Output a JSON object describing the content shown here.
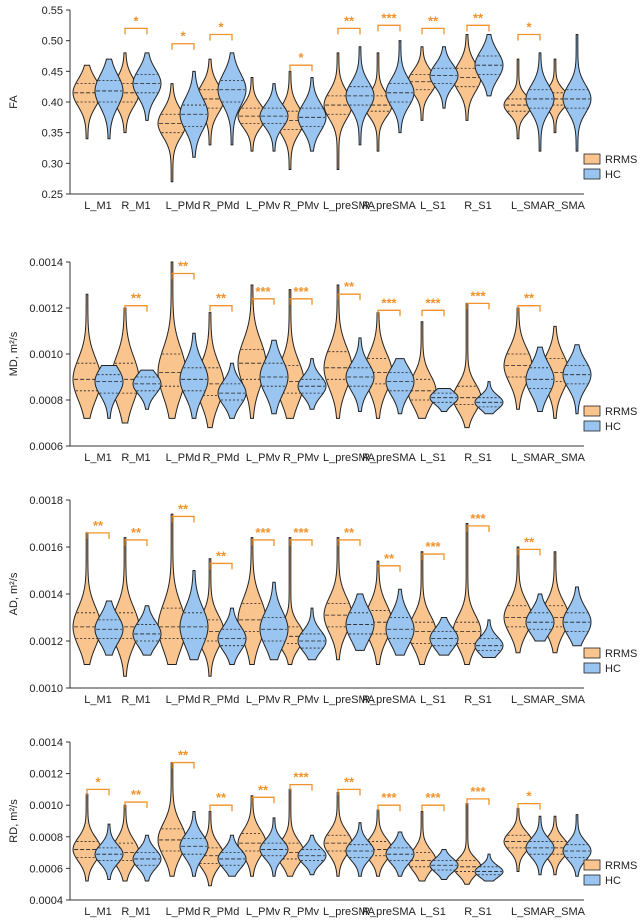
{
  "chart_data": [
    {
      "type": "violin",
      "ylabel": "FA",
      "ylim": [
        0.25,
        0.55
      ],
      "yticks": [
        "0.25",
        "0.30",
        "0.35",
        "0.40",
        "0.45",
        "0.50",
        "0.55"
      ],
      "categories": [
        "L_M1",
        "R_M1",
        "L_PMd",
        "R_PMd",
        "L_PMv",
        "R_PMv",
        "L_preSMA",
        "R_preSMA",
        "L_S1",
        "R_S1",
        "L_SMA",
        "R_SMA"
      ],
      "series": [
        {
          "name": "RRMS",
          "color": "#F9C48D",
          "min": [
            0.34,
            0.35,
            0.27,
            0.33,
            0.32,
            0.29,
            0.29,
            0.32,
            0.37,
            0.37,
            0.34,
            0.35
          ],
          "max": [
            0.46,
            0.48,
            0.43,
            0.47,
            0.44,
            0.45,
            0.48,
            0.48,
            0.49,
            0.51,
            0.47,
            0.47
          ],
          "median": [
            0.415,
            0.415,
            0.365,
            0.405,
            0.377,
            0.37,
            0.395,
            0.395,
            0.433,
            0.44,
            0.395,
            0.405
          ],
          "q1": [
            0.4,
            0.4,
            0.35,
            0.39,
            0.365,
            0.355,
            0.38,
            0.385,
            0.42,
            0.425,
            0.385,
            0.395
          ],
          "q3": [
            0.43,
            0.43,
            0.38,
            0.42,
            0.39,
            0.385,
            0.41,
            0.41,
            0.445,
            0.455,
            0.405,
            0.415
          ]
        },
        {
          "name": "HC",
          "color": "#99C5F0",
          "min": [
            0.34,
            0.37,
            0.31,
            0.33,
            0.32,
            0.32,
            0.33,
            0.35,
            0.39,
            0.41,
            0.32,
            0.32
          ],
          "max": [
            0.47,
            0.48,
            0.45,
            0.48,
            0.43,
            0.44,
            0.49,
            0.5,
            0.49,
            0.51,
            0.48,
            0.51
          ],
          "median": [
            0.418,
            0.43,
            0.38,
            0.42,
            0.377,
            0.375,
            0.41,
            0.415,
            0.443,
            0.46,
            0.405,
            0.405
          ],
          "q1": [
            0.4,
            0.415,
            0.36,
            0.4,
            0.365,
            0.36,
            0.395,
            0.4,
            0.43,
            0.445,
            0.39,
            0.39
          ],
          "q3": [
            0.435,
            0.445,
            0.395,
            0.435,
            0.39,
            0.39,
            0.425,
            0.43,
            0.455,
            0.475,
            0.42,
            0.42
          ]
        }
      ],
      "significance": [
        "",
        "*",
        "*",
        "*",
        "",
        "*",
        "**",
        "***",
        "**",
        "**",
        "*",
        ""
      ],
      "sig_y": [
        null,
        0.52,
        0.495,
        0.51,
        null,
        0.46,
        0.52,
        0.525,
        0.52,
        0.525,
        0.51,
        null
      ]
    },
    {
      "type": "violin",
      "ylabel": "MD, m²/s",
      "ylim": [
        0.0006,
        0.0014
      ],
      "yticks": [
        "0.0006",
        "0.0008",
        "0.0010",
        "0.0012",
        "0.0014"
      ],
      "categories": [
        "L_M1",
        "R_M1",
        "L_PMd",
        "R_PMd",
        "L_PMv",
        "R_PMv",
        "L_preSMA",
        "R_preSMA",
        "L_S1",
        "R_S1",
        "L_SMA",
        "R_SMA"
      ],
      "series": [
        {
          "name": "RRMS",
          "color": "#F9C48D",
          "min": [
            0.00072,
            0.0007,
            0.00072,
            0.00068,
            0.00072,
            0.00072,
            0.00072,
            0.00072,
            0.00072,
            0.00068,
            0.00076,
            0.00072
          ],
          "max": [
            0.00126,
            0.0012,
            0.0014,
            0.00118,
            0.0013,
            0.00128,
            0.0013,
            0.00118,
            0.00114,
            0.00122,
            0.0012,
            0.00112
          ],
          "median": [
            0.00089,
            0.00089,
            0.00092,
            0.00087,
            0.00096,
            0.00088,
            0.00094,
            0.00092,
            0.00084,
            0.00081,
            0.00095,
            0.00092
          ],
          "q1": [
            0.00084,
            0.00083,
            0.00086,
            0.00082,
            0.00089,
            0.00083,
            0.00089,
            0.00087,
            0.0008,
            0.00078,
            0.0009,
            0.00088
          ],
          "q3": [
            0.00096,
            0.00096,
            0.001,
            0.00094,
            0.00102,
            0.00095,
            0.00101,
            0.00098,
            0.00089,
            0.00086,
            0.001,
            0.00098
          ]
        },
        {
          "name": "HC",
          "color": "#99C5F0",
          "min": [
            0.00072,
            0.00076,
            0.00072,
            0.00072,
            0.00074,
            0.00076,
            0.00075,
            0.00074,
            0.00075,
            0.00074,
            0.00075,
            0.00074
          ],
          "max": [
            0.00095,
            0.00093,
            0.00109,
            0.00096,
            0.00106,
            0.00098,
            0.00107,
            0.00098,
            0.00085,
            0.00088,
            0.00103,
            0.00104
          ],
          "median": [
            0.00088,
            0.00087,
            0.00089,
            0.00083,
            0.0009,
            0.00086,
            0.0009,
            0.00088,
            0.00081,
            0.00079,
            0.00089,
            0.00091
          ],
          "q1": [
            0.00083,
            0.00084,
            0.00084,
            0.0008,
            0.00086,
            0.00083,
            0.00086,
            0.00084,
            0.00079,
            0.00077,
            0.00085,
            0.00087
          ],
          "q3": [
            0.00091,
            0.0009,
            0.00094,
            0.00087,
            0.00096,
            0.00089,
            0.00094,
            0.00092,
            0.00083,
            0.00081,
            0.00094,
            0.00095
          ]
        }
      ],
      "significance": [
        "",
        "**",
        "**",
        "**",
        "***",
        "***",
        "**",
        "***",
        "***",
        "***",
        "**",
        ""
      ],
      "sig_y": [
        null,
        0.00121,
        0.00135,
        0.00121,
        0.00124,
        0.00124,
        0.00126,
        0.00119,
        0.00119,
        0.00122,
        0.00121,
        null
      ]
    },
    {
      "type": "violin",
      "ylabel": "AD, m²/s",
      "ylim": [
        0.001,
        0.0018
      ],
      "yticks": [
        "0.0010",
        "0.0012",
        "0.0014",
        "0.0016",
        "0.0018"
      ],
      "categories": [
        "L_M1",
        "R_M1",
        "L_PMd",
        "R_PMd",
        "L_PMv",
        "R_PMv",
        "L_preSMA",
        "R_preSMA",
        "L_S1",
        "R_S1",
        "L_SMA",
        "R_SMA"
      ],
      "series": [
        {
          "name": "RRMS",
          "color": "#F9C48D",
          "min": [
            0.0011,
            0.00105,
            0.0011,
            0.00105,
            0.0011,
            0.0011,
            0.00112,
            0.0011,
            0.0011,
            0.0011,
            0.00115,
            0.00115
          ],
          "max": [
            0.00166,
            0.00164,
            0.00174,
            0.00155,
            0.00164,
            0.00164,
            0.00164,
            0.00154,
            0.00158,
            0.0017,
            0.0016,
            0.00158
          ],
          "median": [
            0.00126,
            0.00126,
            0.00126,
            0.00124,
            0.00129,
            0.00122,
            0.00131,
            0.00128,
            0.00124,
            0.00124,
            0.0013,
            0.0013
          ],
          "q1": [
            0.00121,
            0.00121,
            0.00121,
            0.0012,
            0.00124,
            0.00119,
            0.00126,
            0.00123,
            0.00119,
            0.00119,
            0.00126,
            0.00126
          ],
          "q3": [
            0.00132,
            0.00132,
            0.00134,
            0.00129,
            0.00136,
            0.00126,
            0.00136,
            0.00133,
            0.00128,
            0.00128,
            0.00135,
            0.00135
          ]
        },
        {
          "name": "HC",
          "color": "#99C5F0",
          "min": [
            0.00114,
            0.00114,
            0.00112,
            0.0011,
            0.00112,
            0.00112,
            0.00116,
            0.00114,
            0.00114,
            0.00113,
            0.0012,
            0.00118
          ],
          "max": [
            0.00137,
            0.00135,
            0.0015,
            0.00134,
            0.00145,
            0.00134,
            0.0014,
            0.00142,
            0.0013,
            0.00129,
            0.0014,
            0.00143
          ],
          "median": [
            0.00125,
            0.00123,
            0.00126,
            0.00121,
            0.00125,
            0.0012,
            0.00127,
            0.00125,
            0.00121,
            0.00118,
            0.00128,
            0.00128
          ],
          "q1": [
            0.00121,
            0.0012,
            0.00121,
            0.00118,
            0.0012,
            0.00117,
            0.00123,
            0.00121,
            0.00118,
            0.00116,
            0.00125,
            0.00124
          ],
          "q3": [
            0.00129,
            0.00127,
            0.00132,
            0.00125,
            0.0013,
            0.00123,
            0.00132,
            0.0013,
            0.00124,
            0.00121,
            0.00132,
            0.00132
          ]
        }
      ],
      "significance": [
        "**",
        "**",
        "**",
        "**",
        "***",
        "***",
        "**",
        "**",
        "***",
        "***",
        "**",
        ""
      ],
      "sig_y": [
        0.00166,
        0.00163,
        0.00173,
        0.00153,
        0.00163,
        0.00163,
        0.00163,
        0.00152,
        0.00157,
        0.00169,
        0.00159,
        null
      ]
    },
    {
      "type": "violin",
      "ylabel": "RD, m²/s",
      "ylim": [
        0.0004,
        0.0014
      ],
      "yticks": [
        "0.0004",
        "0.0006",
        "0.0008",
        "0.0010",
        "0.0012",
        "0.0014"
      ],
      "categories": [
        "L_M1",
        "R_M1",
        "L_PMd",
        "R_PMd",
        "L_PMv",
        "R_PMv",
        "L_preSMA",
        "R_preSMA",
        "L_S1",
        "R_S1",
        "L_SMA",
        "R_SMA"
      ],
      "series": [
        {
          "name": "RRMS",
          "color": "#F9C48D",
          "min": [
            0.00052,
            0.00052,
            0.00055,
            0.00049,
            0.00055,
            0.00055,
            0.00055,
            0.00055,
            0.00052,
            0.0005,
            0.00058,
            0.00056
          ],
          "max": [
            0.00107,
            0.001,
            0.00127,
            0.00096,
            0.00106,
            0.0011,
            0.00108,
            0.00097,
            0.00096,
            0.00101,
            0.00098,
            0.00093
          ],
          "median": [
            0.00072,
            0.0007,
            0.00078,
            0.00068,
            0.00076,
            0.0007,
            0.00076,
            0.00072,
            0.00065,
            0.00061,
            0.00077,
            0.00073
          ],
          "q1": [
            0.00067,
            0.00065,
            0.00071,
            0.00063,
            0.00071,
            0.00066,
            0.00071,
            0.00068,
            0.00061,
            0.00058,
            0.00073,
            0.00069
          ],
          "q3": [
            0.00077,
            0.00076,
            0.00085,
            0.00073,
            0.00082,
            0.00076,
            0.00081,
            0.00077,
            0.0007,
            0.00065,
            0.00081,
            0.00077
          ]
        },
        {
          "name": "HC",
          "color": "#99C5F0",
          "min": [
            0.00053,
            0.00052,
            0.00055,
            0.00055,
            0.00055,
            0.00056,
            0.00055,
            0.00055,
            0.00053,
            0.00052,
            0.00056,
            0.00055
          ],
          "max": [
            0.00088,
            0.00081,
            0.00096,
            0.00081,
            0.00092,
            0.00081,
            0.00089,
            0.00083,
            0.00072,
            0.00069,
            0.00093,
            0.00094
          ],
          "median": [
            0.00069,
            0.00066,
            0.00074,
            0.00066,
            0.00072,
            0.00068,
            0.00071,
            0.00069,
            0.00062,
            0.00058,
            0.00073,
            0.00071
          ],
          "q1": [
            0.00065,
            0.00062,
            0.00069,
            0.00062,
            0.00068,
            0.00065,
            0.00067,
            0.00065,
            0.00059,
            0.00056,
            0.00069,
            0.00067
          ],
          "q3": [
            0.00073,
            0.0007,
            0.00079,
            0.0007,
            0.00076,
            0.00072,
            0.00075,
            0.00073,
            0.00065,
            0.00061,
            0.00077,
            0.00075
          ]
        }
      ],
      "significance": [
        "*",
        "**",
        "**",
        "**",
        "**",
        "***",
        "**",
        "***",
        "***",
        "***",
        "*",
        ""
      ],
      "sig_y": [
        0.0011,
        0.00102,
        0.00127,
        0.001,
        0.00105,
        0.00113,
        0.0011,
        0.001,
        0.001,
        0.00104,
        0.00101,
        null
      ]
    }
  ],
  "legend": [
    {
      "label": "RRMS",
      "color": "#F9C48D"
    },
    {
      "label": "HC",
      "color": "#99C5F0"
    }
  ],
  "significance_color": "#F0932B"
}
